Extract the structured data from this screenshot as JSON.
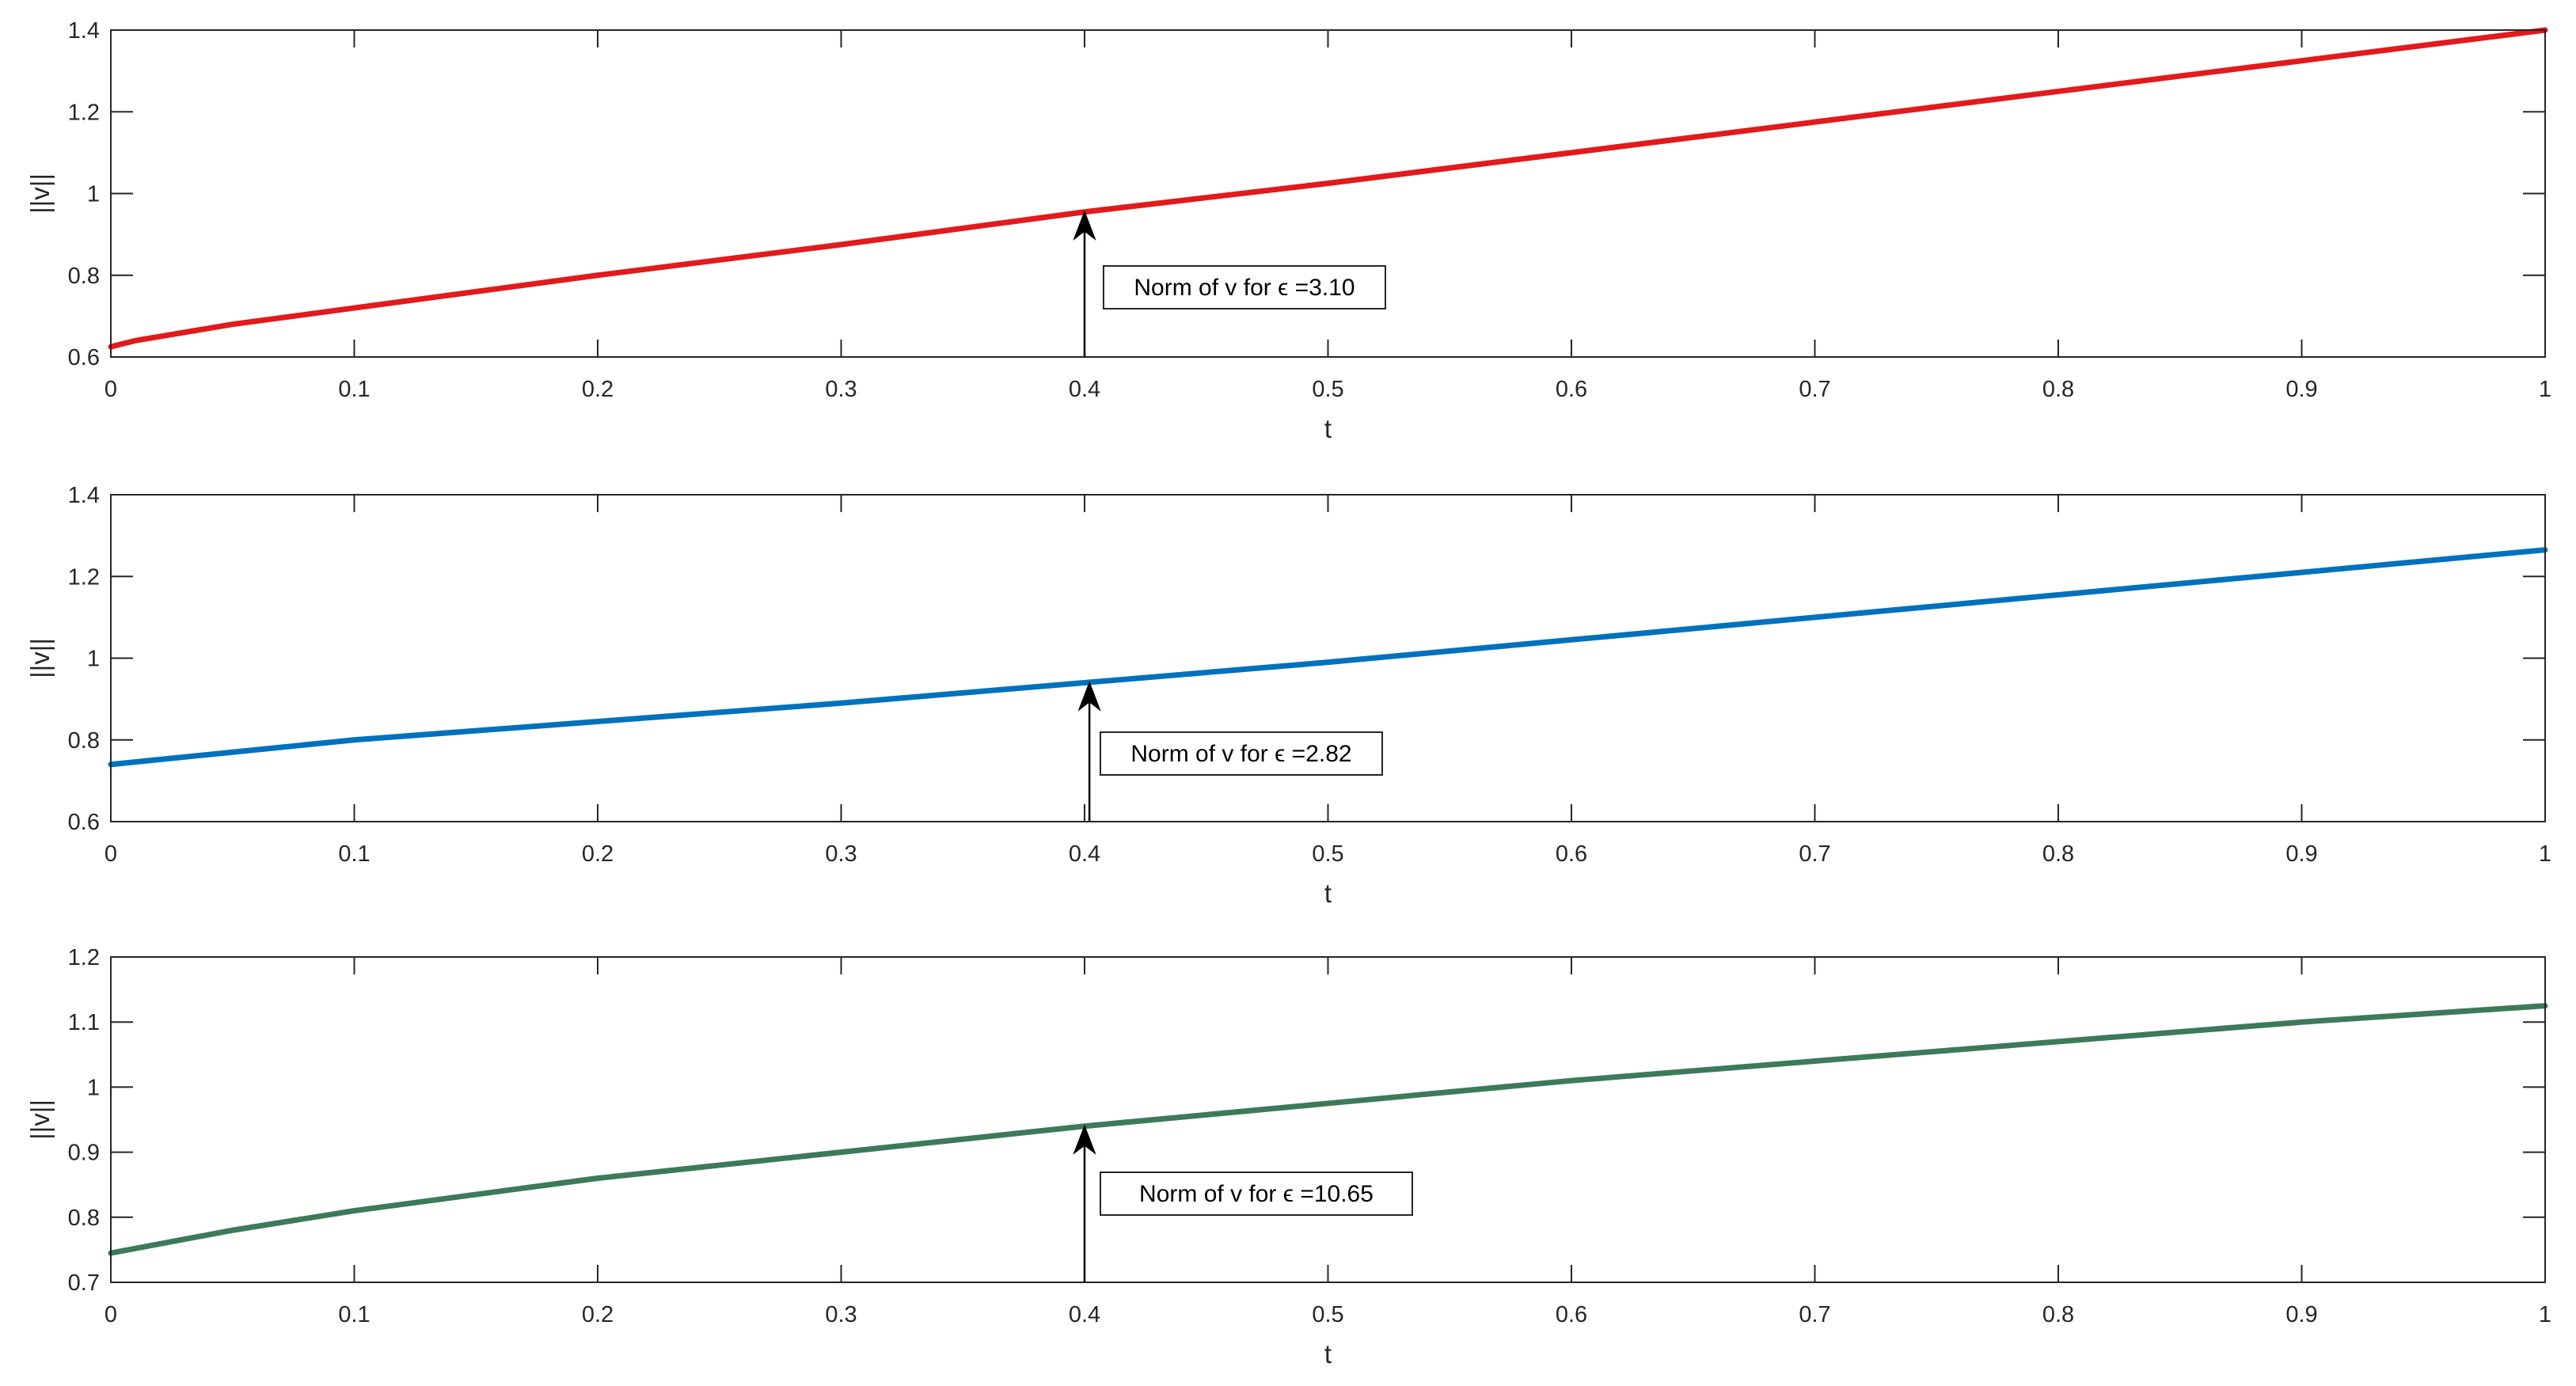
{
  "chart_data": [
    {
      "type": "line",
      "xlabel": "t",
      "ylabel": "||v||",
      "xlim": [
        0,
        1
      ],
      "ylim": [
        0.6,
        1.4
      ],
      "xticks": [
        "0",
        "0.1",
        "0.2",
        "0.3",
        "0.4",
        "0.5",
        "0.6",
        "0.7",
        "0.8",
        "0.9",
        "1"
      ],
      "yticks": [
        "0.6",
        "0.8",
        "1",
        "1.2",
        "1.4"
      ],
      "grid": false,
      "series": [
        {
          "color": "#e31a1c",
          "x": [
            0,
            0.01,
            0.02,
            0.05,
            0.1,
            0.2,
            0.3,
            0.4,
            0.5,
            0.6,
            0.7,
            0.8,
            0.9,
            1.0
          ],
          "y": [
            0.625,
            0.64,
            0.65,
            0.68,
            0.72,
            0.8,
            0.875,
            0.955,
            1.025,
            1.1,
            1.175,
            1.25,
            1.325,
            1.4
          ]
        }
      ],
      "annotation": {
        "text": "Norm of v for ϵ =3.10",
        "arrow_tip": [
          0.4,
          0.955
        ],
        "arrow_tail": [
          0.4,
          0.6
        ]
      }
    },
    {
      "type": "line",
      "xlabel": "t",
      "ylabel": "||v||",
      "xlim": [
        0,
        1
      ],
      "ylim": [
        0.6,
        1.4
      ],
      "xticks": [
        "0",
        "0.1",
        "0.2",
        "0.3",
        "0.4",
        "0.5",
        "0.6",
        "0.7",
        "0.8",
        "0.9",
        "1"
      ],
      "yticks": [
        "0.6",
        "0.8",
        "1",
        "1.2",
        "1.4"
      ],
      "grid": false,
      "series": [
        {
          "color": "#0072bd",
          "x": [
            0,
            0.05,
            0.1,
            0.2,
            0.3,
            0.4,
            0.5,
            0.6,
            0.7,
            0.8,
            0.9,
            1.0
          ],
          "y": [
            0.74,
            0.77,
            0.8,
            0.845,
            0.89,
            0.94,
            0.99,
            1.045,
            1.1,
            1.155,
            1.21,
            1.265
          ]
        }
      ],
      "annotation": {
        "text": "Norm of v for ϵ =2.82",
        "arrow_tip": [
          0.402,
          0.94
        ],
        "arrow_tail": [
          0.402,
          0.6
        ]
      }
    },
    {
      "type": "line",
      "xlabel": "t",
      "ylabel": "||v||",
      "xlim": [
        0,
        1
      ],
      "ylim": [
        0.7,
        1.2
      ],
      "xticks": [
        "0",
        "0.1",
        "0.2",
        "0.3",
        "0.4",
        "0.5",
        "0.6",
        "0.7",
        "0.8",
        "0.9",
        "1"
      ],
      "yticks": [
        "0.7",
        "0.8",
        "0.9",
        "1",
        "1.1",
        "1.2"
      ],
      "grid": false,
      "series": [
        {
          "color": "#3d7a5a",
          "x": [
            0,
            0.05,
            0.1,
            0.2,
            0.3,
            0.4,
            0.5,
            0.6,
            0.7,
            0.8,
            0.9,
            1.0
          ],
          "y": [
            0.745,
            0.78,
            0.81,
            0.86,
            0.9,
            0.94,
            0.975,
            1.01,
            1.04,
            1.07,
            1.1,
            1.125
          ]
        }
      ],
      "annotation": {
        "text": "Norm of v for ϵ =10.65",
        "arrow_tip": [
          0.4,
          0.94
        ],
        "arrow_tail": [
          0.4,
          0.7
        ]
      }
    }
  ]
}
